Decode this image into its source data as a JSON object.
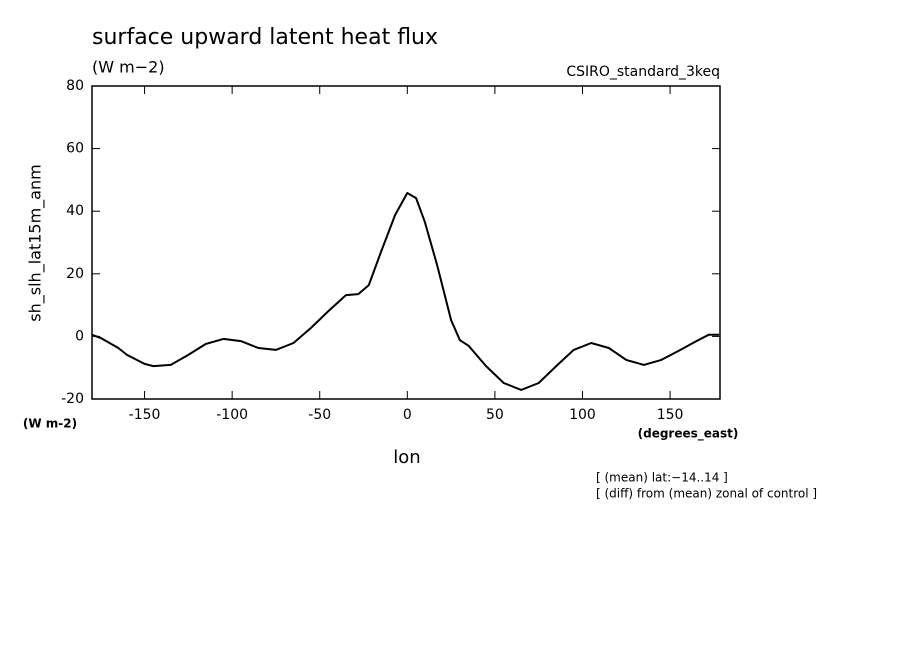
{
  "chart_data": {
    "type": "line",
    "title": "surface upward latent heat flux",
    "subtitle": "(W m−2)",
    "source": "CSIRO_standard_3keq",
    "ylabel": "sh_slh_lat15m_anm",
    "yunits": "(W m-2)",
    "xlabel": "lon",
    "xunits": "(degrees_east)",
    "notes": [
      "[ (mean) lat:−14..14 ]",
      "[ (diff) from (mean) zonal of control ]"
    ],
    "x": [
      -180,
      -175,
      -165,
      -160,
      -150,
      -145,
      -135,
      -125,
      -115,
      -105,
      -95,
      -85,
      -75,
      -65,
      -55,
      -45,
      -35,
      -28,
      -22,
      -15,
      -7,
      0,
      5,
      10,
      17,
      25,
      30,
      35,
      45,
      55,
      65,
      75,
      85,
      95,
      105,
      115,
      125,
      135,
      145,
      155,
      165,
      172,
      178
    ],
    "series": [
      {
        "name": "sh_slh_lat15m_anm",
        "color": "#000000",
        "values": [
          0.5,
          -0.5,
          -3.7,
          -5.9,
          -8.8,
          -9.5,
          -9.1,
          -5.9,
          -2.4,
          -0.8,
          -1.5,
          -3.7,
          -4.3,
          -2.1,
          2.7,
          8.1,
          13.2,
          13.5,
          16.4,
          27,
          38.8,
          45.8,
          44.2,
          36.6,
          22.8,
          5.2,
          -1.2,
          -3,
          -9.5,
          -14.9,
          -17.1,
          -14.9,
          -9.5,
          -4.3,
          -2.1,
          -3.7,
          -7.5,
          -9.1,
          -7.5,
          -4.6,
          -1.5,
          0.5,
          0.5
        ]
      }
    ],
    "xlim": [
      -180,
      178.5
    ],
    "ylim": [
      -20,
      80
    ],
    "xticks": [
      -150,
      -100,
      -50,
      0,
      50,
      100,
      150
    ],
    "yticks": [
      -20,
      0,
      20,
      40,
      60,
      80
    ]
  }
}
